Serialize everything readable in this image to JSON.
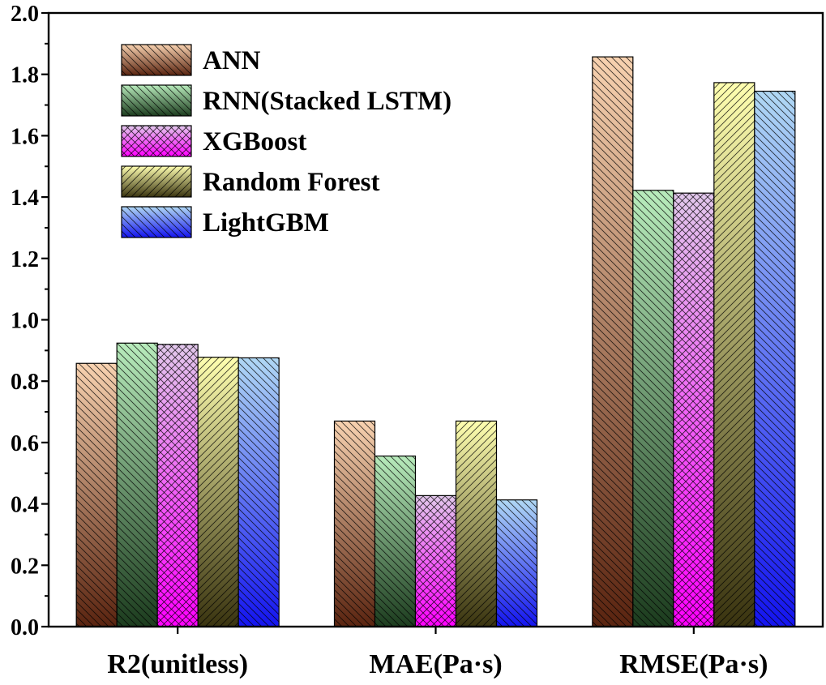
{
  "chart_data": {
    "type": "bar",
    "title": "",
    "xlabel": "",
    "ylabel": "",
    "ylim": [
      0,
      2.0
    ],
    "yticks": [
      "0.0",
      "0.2",
      "0.4",
      "0.6",
      "0.8",
      "1.0",
      "1.2",
      "1.4",
      "1.6",
      "1.8",
      "2.0"
    ],
    "categories": [
      "R2(unitless)",
      "MAE(Pa·s)",
      "RMSE(Pa·s)"
    ],
    "grid": false,
    "legend_position": "top-left",
    "series": [
      {
        "name": "ANN",
        "values": [
          0.858,
          0.67,
          1.857
        ],
        "color_dark": "#5a2410",
        "color_light": "#f8d2b0",
        "hatch": "backslash"
      },
      {
        "name": "RNN(Stacked LSTM)",
        "values": [
          0.924,
          0.556,
          1.422
        ],
        "color_dark": "#1c3c1e",
        "color_light": "#b8ecbc",
        "hatch": "backslash"
      },
      {
        "name": "XGBoost",
        "values": [
          0.92,
          0.427,
          1.413
        ],
        "color_dark": "#ff00ff",
        "color_light": "#e2c8ec",
        "hatch": "cross"
      },
      {
        "name": "Random Forest",
        "values": [
          0.878,
          0.67,
          1.773
        ],
        "color_dark": "#3a3410",
        "color_light": "#ffffb0",
        "hatch": "slash"
      },
      {
        "name": "LightGBM",
        "values": [
          0.876,
          0.413,
          1.745
        ],
        "color_dark": "#1414f0",
        "color_light": "#b0d8f4",
        "hatch": "backslash"
      }
    ]
  }
}
